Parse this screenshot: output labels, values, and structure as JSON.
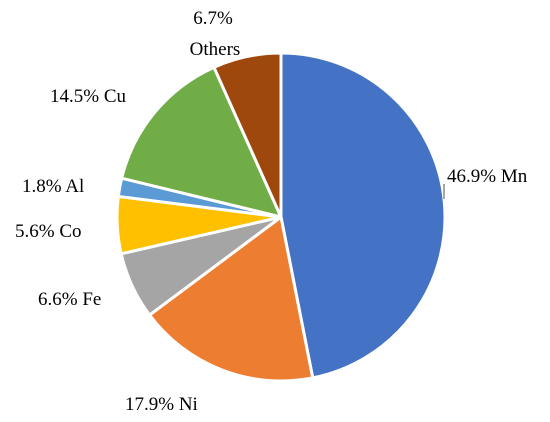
{
  "chart_data": {
    "type": "pie",
    "categories": [
      "Mn",
      "Ni",
      "Fe",
      "Co",
      "Al",
      "Cu",
      "Others"
    ],
    "values": [
      46.9,
      17.9,
      6.6,
      5.6,
      1.8,
      14.5,
      6.7
    ],
    "value_labels": [
      "46.9%",
      "17.9%",
      "6.6%",
      "5.6%",
      "1.8%",
      "14.5%",
      "6.7%"
    ],
    "colors": [
      "#4472c4",
      "#ed7d31",
      "#a5a5a5",
      "#ffc000",
      "#5b9bd5",
      "#70ad47",
      "#9e480e"
    ]
  }
}
